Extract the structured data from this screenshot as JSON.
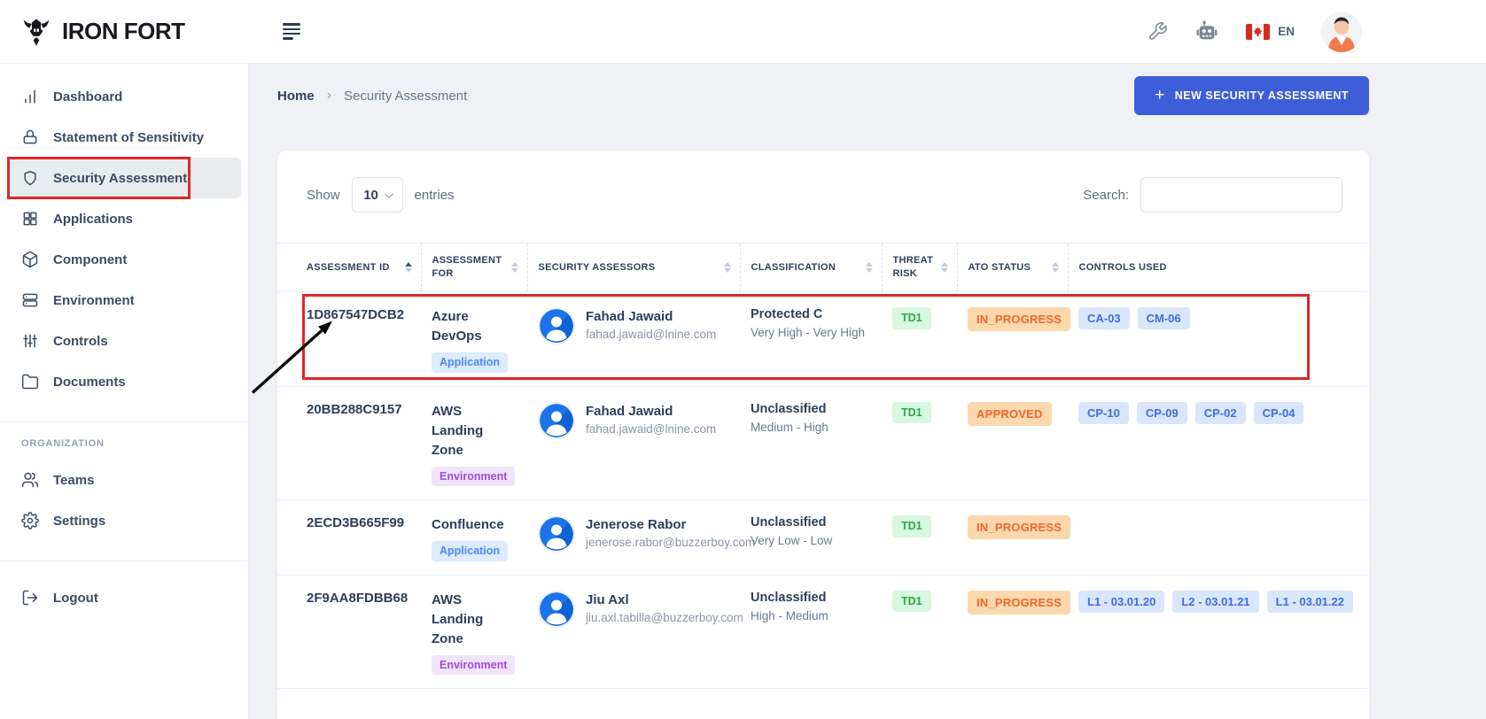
{
  "brand": {
    "name": "IRON FORT"
  },
  "topbar": {
    "language": "EN"
  },
  "sidebar": {
    "items": [
      {
        "label": "Dashboard",
        "icon": "bar-chart",
        "active": false
      },
      {
        "label": "Statement of Sensitivity",
        "icon": "lock",
        "active": false
      },
      {
        "label": "Security Assessment",
        "icon": "shield",
        "active": true
      },
      {
        "label": "Applications",
        "icon": "grid",
        "active": false
      },
      {
        "label": "Component",
        "icon": "cube",
        "active": false
      },
      {
        "label": "Environment",
        "icon": "server",
        "active": false
      },
      {
        "label": "Controls",
        "icon": "sliders",
        "active": false
      },
      {
        "label": "Documents",
        "icon": "folder",
        "active": false
      }
    ],
    "section_label": "ORGANIZATION",
    "organization_items": [
      {
        "label": "Teams",
        "icon": "users",
        "active": false
      },
      {
        "label": "Settings",
        "icon": "gear",
        "active": false
      }
    ],
    "logout_label": "Logout"
  },
  "breadcrumb": {
    "home": "Home",
    "separator": "›",
    "current": "Security Assessment"
  },
  "actions": {
    "new_assessment_label": "NEW SECURITY ASSESSMENT"
  },
  "table_controls": {
    "show_label": "Show",
    "page_size": "10",
    "entries_label": "entries",
    "search_label": "Search:",
    "search_value": ""
  },
  "table": {
    "columns": [
      {
        "label": "ASSESSMENT ID",
        "sort": "asc"
      },
      {
        "label": "ASSESSMENT FOR",
        "sort": "none"
      },
      {
        "label": "SECURITY ASSESSORS",
        "sort": "none"
      },
      {
        "label": "CLASSIFICATION",
        "sort": "none"
      },
      {
        "label": "THREAT RISK",
        "sort": "none"
      },
      {
        "label": "ATO STATUS",
        "sort": "none"
      },
      {
        "label": "CONTROLS USED",
        "sort": null
      }
    ],
    "rows": [
      {
        "assessment_id": "1D867547DCB2",
        "assessment_for": "Azure DevOps",
        "target_type": "Application",
        "assessor": {
          "name": "Fahad Jawaid",
          "email": "fahad.jawaid@lnine.com"
        },
        "classification": "Protected C",
        "classification_range": "Very High - Very High",
        "threat_risk": "TD1",
        "ato_status": "IN_PROGRESS",
        "controls_used": [
          "CA-03",
          "CM-06"
        ],
        "highlighted": true
      },
      {
        "assessment_id": "20BB288C9157",
        "assessment_for": "AWS Landing Zone",
        "target_type": "Environment",
        "assessor": {
          "name": "Fahad Jawaid",
          "email": "fahad.jawaid@lnine.com"
        },
        "classification": "Unclassified",
        "classification_range": "Medium - High",
        "threat_risk": "TD1",
        "ato_status": "APPROVED",
        "controls_used": [
          "CP-10",
          "CP-09",
          "CP-02",
          "CP-04"
        ],
        "highlighted": false
      },
      {
        "assessment_id": "2ECD3B665F99",
        "assessment_for": "Confluence",
        "target_type": "Application",
        "assessor": {
          "name": "Jenerose Rabor",
          "email": "jenerose.rabor@buzzerboy.com"
        },
        "classification": "Unclassified",
        "classification_range": "Very Low - Low",
        "threat_risk": "TD1",
        "ato_status": "IN_PROGRESS",
        "controls_used": [],
        "highlighted": false
      },
      {
        "assessment_id": "2F9AA8FDBB68",
        "assessment_for": "AWS Landing Zone",
        "target_type": "Environment",
        "assessor": {
          "name": "Jiu Axl",
          "email": "jiu.axl.tabilla@buzzerboy.com"
        },
        "classification": "Unclassified",
        "classification_range": "High - Medium",
        "threat_risk": "TD1",
        "ato_status": "IN_PROGRESS",
        "controls_used": [
          "L1 - 03.01.20",
          "L2 - 03.01.21",
          "L1 - 03.01.22"
        ],
        "highlighted": false
      }
    ]
  },
  "colors": {
    "primary_button": "#3e5ed8",
    "annotation_red": "#e12626",
    "active_item_bg": "#e9ecef",
    "risk_badge_bg": "#d7f8e0",
    "risk_badge_fg": "#2ba84a",
    "status_badge_bg": "#fcd8ae",
    "status_badge_fg": "#f0662a",
    "control_badge_bg": "#d9e6fb",
    "control_badge_fg": "#3e6de0",
    "application_badge_bg": "#dcebfd",
    "application_badge_fg": "#4d87f5",
    "environment_badge_bg": "#f0e4fc",
    "environment_badge_fg": "#9f4bdb",
    "avatar_blue": "#1b74ea"
  }
}
